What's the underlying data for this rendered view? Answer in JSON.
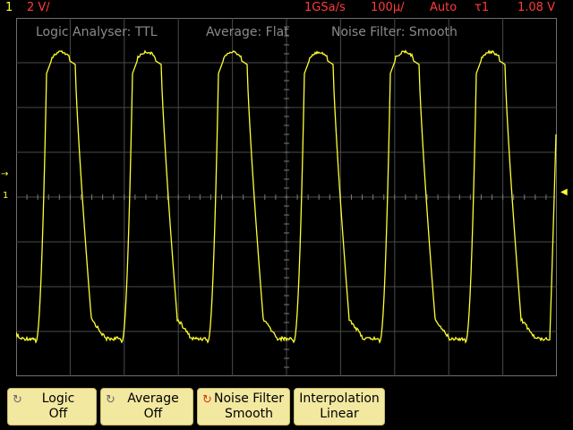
{
  "status_bar": {
    "channel": "1",
    "scale": "2 V/",
    "sample_rate": "1GSa/s",
    "timebase": "100µ/",
    "trigger_mode": "Auto",
    "trigger_source": "τ1",
    "trigger_level": "1.08 V"
  },
  "overlay": {
    "logic": "Logic Analyser: TTL",
    "average": "Average: Flat",
    "noise": "Noise Filter: Smooth"
  },
  "markers": {
    "ground": "→",
    "trigger": "1",
    "right": "◀"
  },
  "softkeys": [
    {
      "title": "Logic",
      "value": "Off",
      "knob": "↻"
    },
    {
      "title": "Average",
      "value": "Off",
      "knob": "↻"
    },
    {
      "title": "Noise Filter",
      "value": "Smooth",
      "knob": "↻"
    },
    {
      "title": "Interpolation",
      "value": "Linear"
    }
  ],
  "colors": {
    "trace": "#ffff33",
    "status": "#ff3b3b",
    "softkey": "#f2e8a0"
  }
}
